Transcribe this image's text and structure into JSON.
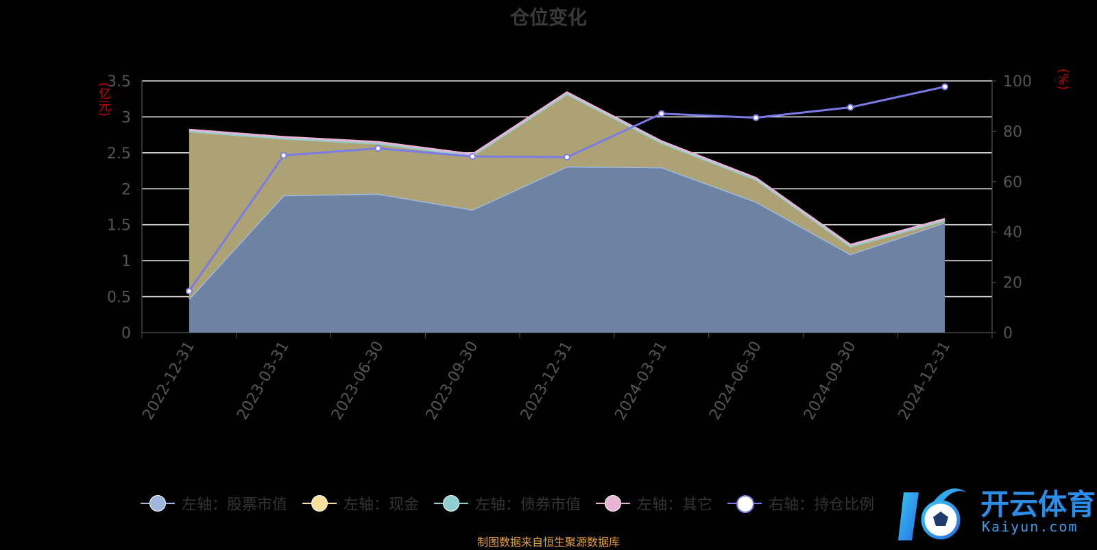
{
  "title": "仓位变化",
  "left_unit": "(亿元)",
  "right_unit": "(%)",
  "source": "制图数据来自恒生聚源数据库",
  "watermark": {
    "text": "开云体育",
    "sub": "Kaiyun.com"
  },
  "colors": {
    "stock": "#9fb7dd",
    "cash": "#f7e19b",
    "bond": "#8fcfd0",
    "other": "#e8b4d4",
    "position": "#7b7be8"
  },
  "legend": [
    {
      "label": "左轴：股票市值",
      "color": "#9fb7dd"
    },
    {
      "label": "左轴：现金",
      "color": "#f7e19b"
    },
    {
      "label": "左轴：债券市值",
      "color": "#8fcfd0"
    },
    {
      "label": "左轴：其它",
      "color": "#e8b4d4"
    },
    {
      "label": "右轴：持仓比例",
      "color": "#7b7be8",
      "hollow": true
    }
  ],
  "chart_data": {
    "type": "area",
    "title": "仓位变化",
    "categories": [
      "2022-12-31",
      "2023-03-31",
      "2023-06-30",
      "2023-09-30",
      "2023-12-31",
      "2024-03-31",
      "2024-06-30",
      "2024-09-30",
      "2024-12-31"
    ],
    "left_axis": {
      "unit": "(亿元)",
      "ylim": [
        0,
        3.5
      ],
      "ticks": [
        "0",
        "0.5",
        "1",
        "1.5",
        "2",
        "2.5",
        "3",
        "3.5"
      ]
    },
    "right_axis": {
      "unit": "(%)",
      "ylim": [
        0,
        100
      ],
      "ticks": [
        "0",
        "20",
        "40",
        "60",
        "80",
        "100"
      ]
    },
    "series": [
      {
        "name": "左轴：股票市值",
        "axis": "left",
        "stacked": true,
        "values": [
          0.47,
          1.91,
          1.93,
          1.71,
          2.31,
          2.3,
          1.82,
          1.09,
          1.53
        ]
      },
      {
        "name": "左轴：现金",
        "axis": "left",
        "stacked": true,
        "values": [
          2.33,
          0.79,
          0.7,
          0.75,
          1.01,
          0.34,
          0.31,
          0.11,
          0.03
        ]
      },
      {
        "name": "左轴：债券市值",
        "axis": "left",
        "stacked": true,
        "values": [
          0,
          0,
          0,
          0,
          0,
          0,
          0,
          0,
          0
        ]
      },
      {
        "name": "左轴：其它",
        "axis": "left",
        "stacked": true,
        "values": [
          0.02,
          0.02,
          0.02,
          0.02,
          0.02,
          0.02,
          0.02,
          0.02,
          0.02
        ]
      },
      {
        "name": "右轴：持仓比例",
        "axis": "right",
        "type": "line",
        "values": [
          16.5,
          70.4,
          73.2,
          70.0,
          69.7,
          87.0,
          85.4,
          89.5,
          97.7
        ]
      }
    ],
    "grid": true,
    "legend_position": "bottom"
  }
}
